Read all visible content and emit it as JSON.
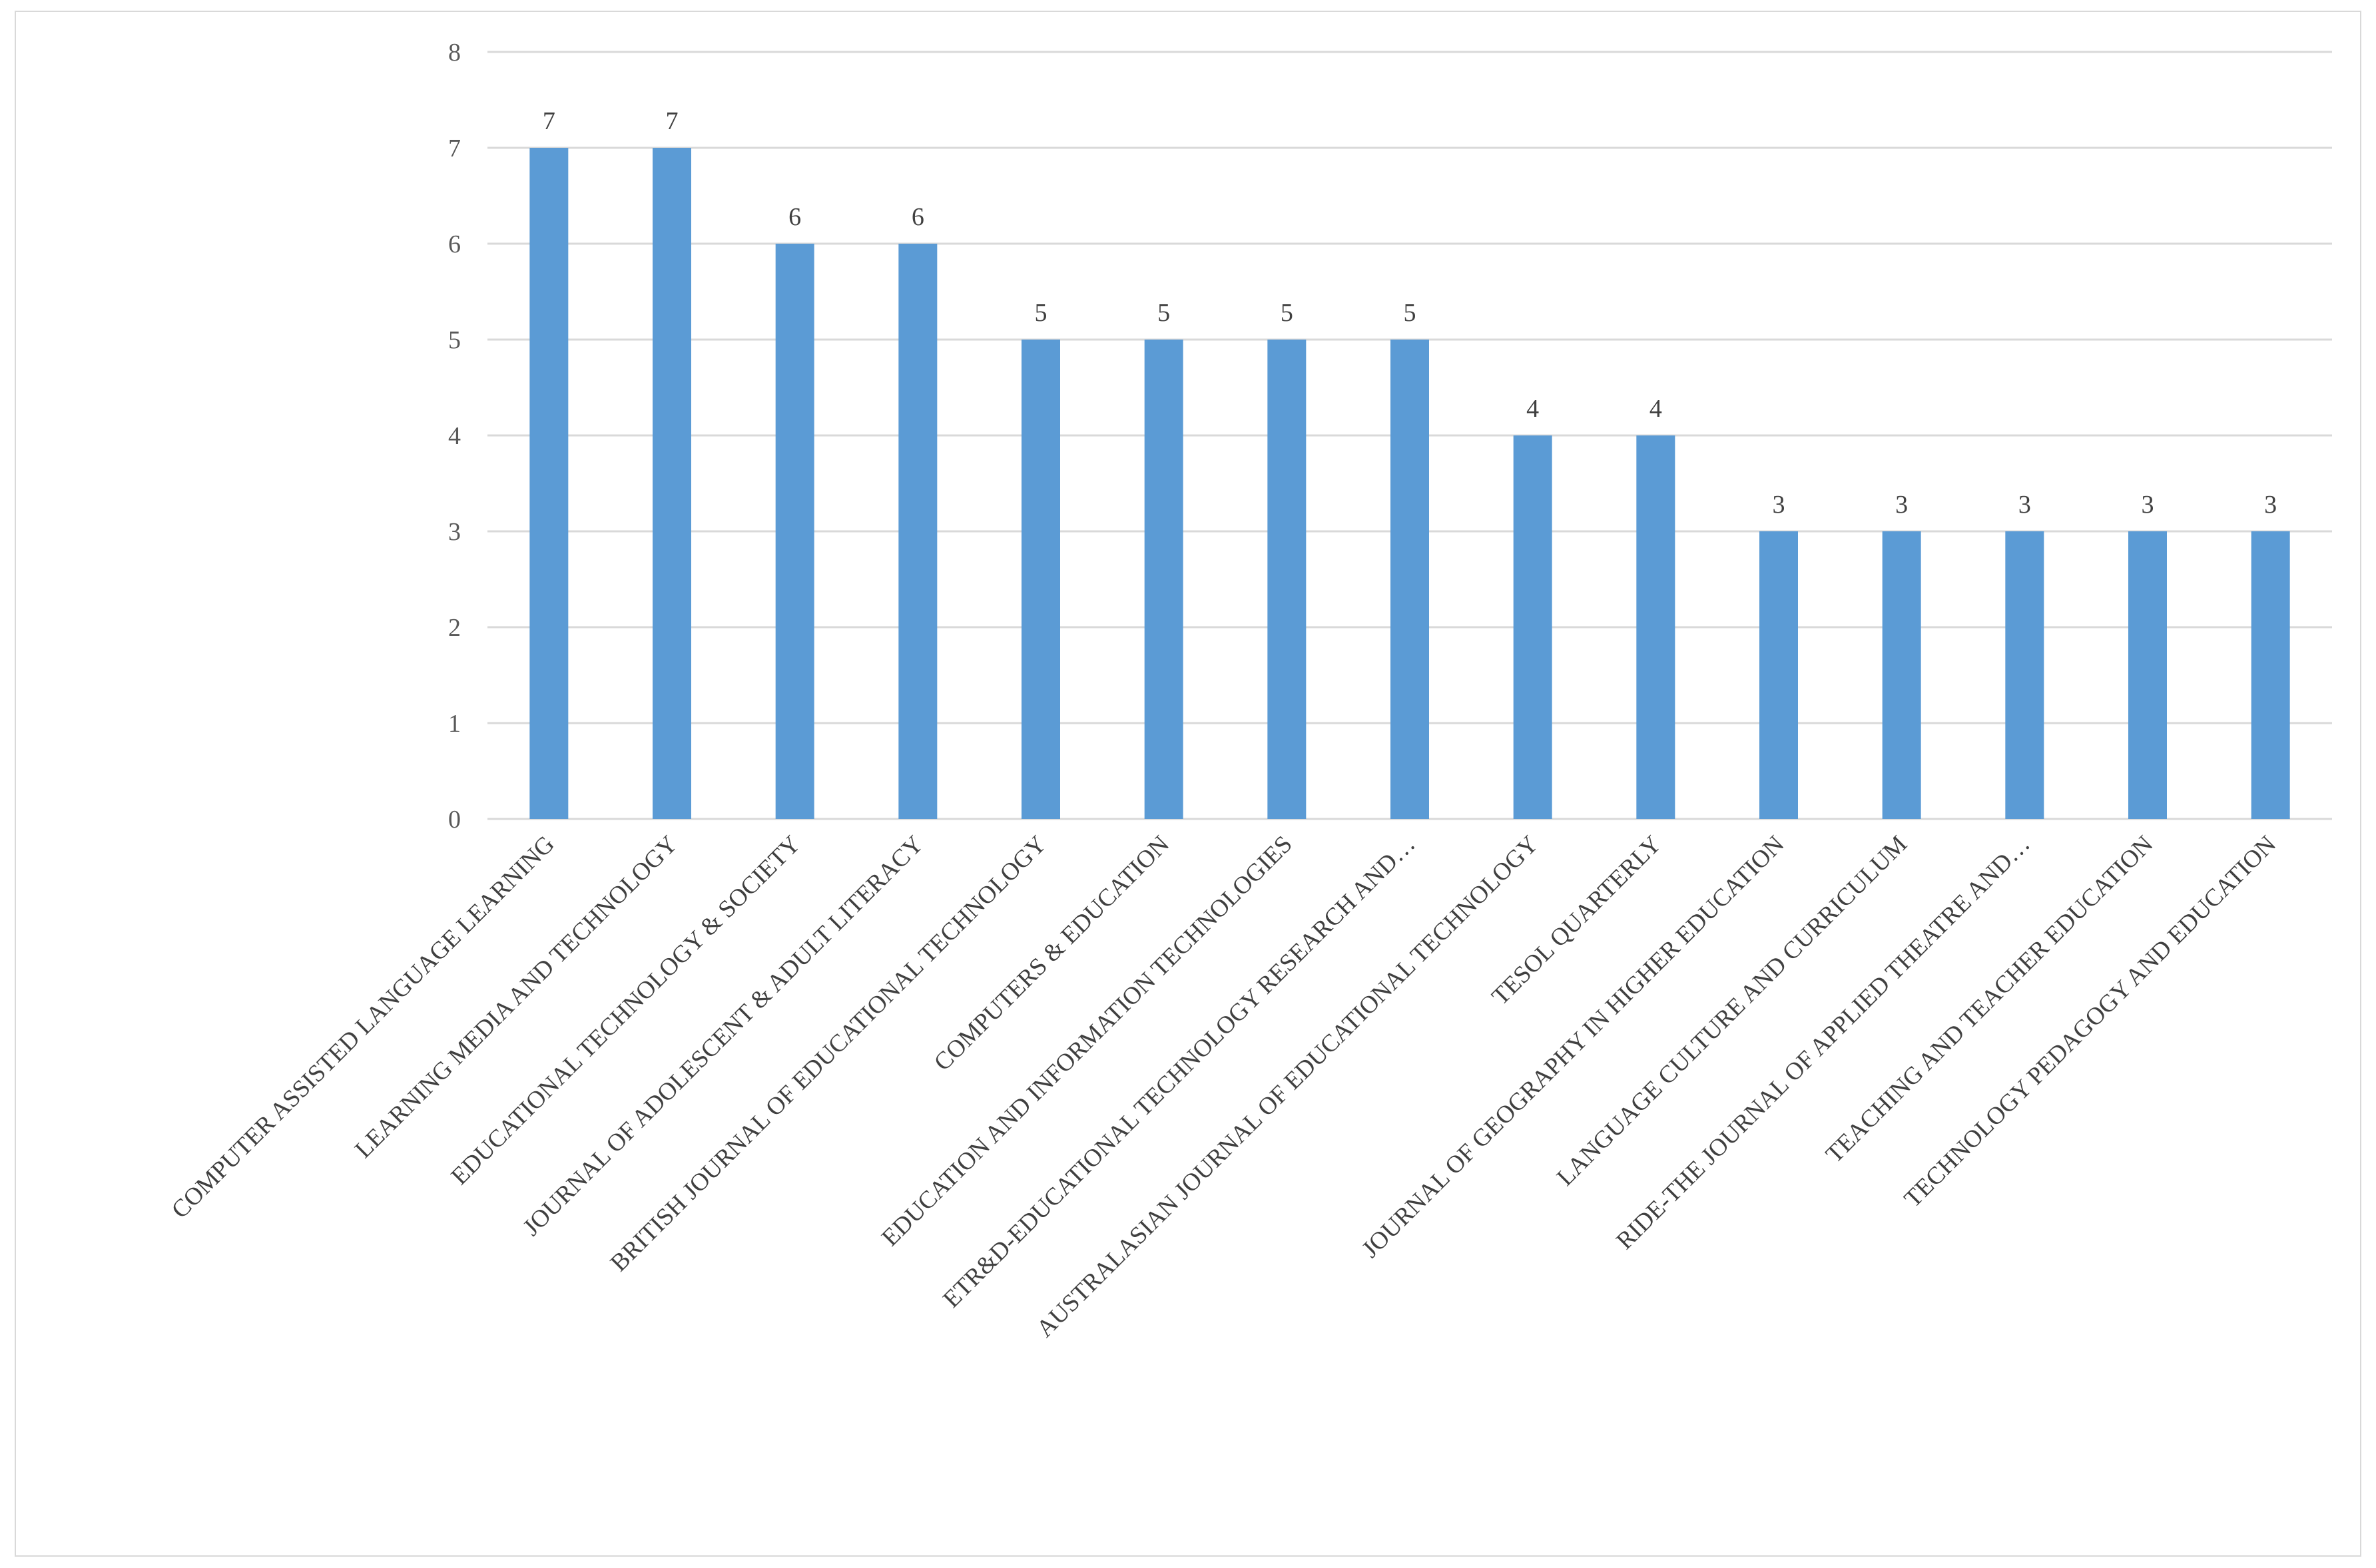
{
  "chart_data": {
    "type": "bar",
    "title": "",
    "xlabel": "",
    "ylabel": "",
    "ylim": [
      0,
      8
    ],
    "yticks": [
      0,
      1,
      2,
      3,
      4,
      5,
      6,
      7,
      8
    ],
    "grid": true,
    "legend": "none",
    "bar_color": "#5b9bd5",
    "grid_color": "#d9d9d9",
    "categories": [
      "COMPUTER ASSISTED LANGUAGE LEARNING",
      "LEARNING MEDIA AND TECHNOLOGY",
      "EDUCATIONAL TECHNOLOGY & SOCIETY",
      "JOURNAL OF ADOLESCENT & ADULT LITERACY",
      "BRITISH JOURNAL OF EDUCATIONAL TECHNOLOGY",
      "COMPUTERS & EDUCATION",
      "EDUCATION AND INFORMATION TECHNOLOGIES",
      "ETR&D-EDUCATIONAL TECHNOLOGY RESEARCH AND…",
      "AUSTRALASIAN JOURNAL OF EDUCATIONAL TECHNOLOGY",
      "TESOL QUARTERLY",
      "JOURNAL OF GEOGRAPHY IN HIGHER EDUCATION",
      "LANGUAGE CULTURE AND CURRICULUM",
      "RIDE-THE JOURNAL OF APPLIED THEATRE AND…",
      "TEACHING AND TEACHER EDUCATION",
      "TECHNOLOGY PEDAGOGY AND EDUCATION"
    ],
    "values": [
      7,
      7,
      6,
      6,
      5,
      5,
      5,
      5,
      4,
      4,
      3,
      3,
      3,
      3,
      3
    ]
  }
}
